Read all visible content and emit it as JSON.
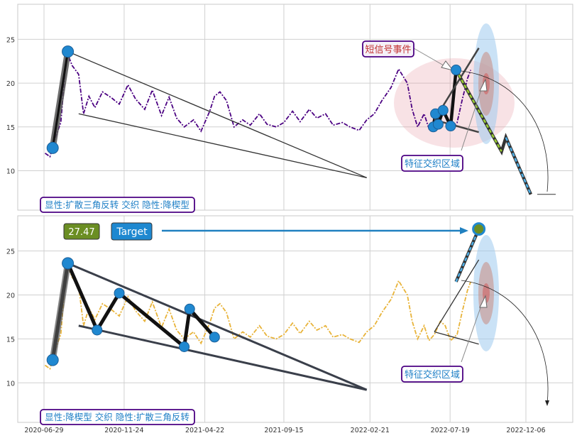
{
  "chart_data": [
    {
      "type": "line",
      "panel": "top",
      "ylim": [
        5.5,
        29
      ],
      "yticks": [
        10,
        15,
        20,
        25
      ],
      "grid": true,
      "series_color": "#4b0082",
      "series": [
        {
          "x": [
            "2020-07-01",
            "2020-07-10",
            "2020-07-20",
            "2020-07-30",
            "2020-08-10",
            "2020-08-20",
            "2020-09-01",
            "2020-09-10",
            "2020-09-20",
            "2020-10-01",
            "2020-10-15",
            "2020-11-01",
            "2020-11-15",
            "2020-12-01",
            "2020-12-15",
            "2021-01-01",
            "2021-01-15",
            "2021-02-01",
            "2021-02-15",
            "2021-03-01",
            "2021-03-15",
            "2021-04-01",
            "2021-04-15",
            "2021-05-01",
            "2021-05-10",
            "2021-05-20",
            "2021-06-01",
            "2021-06-15",
            "2021-07-01",
            "2021-07-15",
            "2021-08-01",
            "2021-08-15",
            "2021-09-01",
            "2021-09-15",
            "2021-10-01",
            "2021-10-15",
            "2021-11-01",
            "2021-11-15",
            "2021-12-01",
            "2021-12-15",
            "2022-01-01",
            "2022-01-15",
            "2022-02-01",
            "2022-02-15",
            "2022-03-01",
            "2022-03-15",
            "2022-04-01",
            "2022-04-15",
            "2022-05-01",
            "2022-05-10",
            "2022-05-20",
            "2022-06-01",
            "2022-06-10",
            "2022-06-20",
            "2022-07-01",
            "2022-07-10",
            "2022-07-20",
            "2022-08-01",
            "2022-08-10",
            "2022-08-20",
            "2022-08-26"
          ],
          "values": [
            12.0,
            11.6,
            13.8,
            15.5,
            23.6,
            22.0,
            21.0,
            16.5,
            18.5,
            17.2,
            19.0,
            18.3,
            17.6,
            19.8,
            18.2,
            17.0,
            19.2,
            16.3,
            18.4,
            16.0,
            15.0,
            15.8,
            14.5,
            16.8,
            18.5,
            19.0,
            18.0,
            15.0,
            15.8,
            15.2,
            16.5,
            15.3,
            15.0,
            15.5,
            16.8,
            15.6,
            17.0,
            16.0,
            16.5,
            15.2,
            15.5,
            15.0,
            14.6,
            15.8,
            16.5,
            18.0,
            19.5,
            21.6,
            20.0,
            17.0,
            15.0,
            16.5,
            14.8,
            15.5,
            17.0,
            16.5,
            14.8,
            15.5,
            18.0,
            20.5,
            21.5
          ]
        }
      ],
      "pattern_points": [
        {
          "x": "2020-07-15",
          "y": 12.6
        },
        {
          "x": "2020-08-12",
          "y": 23.6
        },
        {
          "x": "2022-06-18",
          "y": 15.0
        },
        {
          "x": "2022-06-22",
          "y": 16.5
        },
        {
          "x": "2022-06-27",
          "y": 15.3
        },
        {
          "x": "2022-07-06",
          "y": 16.9
        },
        {
          "x": "2022-07-20",
          "y": 15.1
        },
        {
          "x": "2022-07-30",
          "y": 21.5
        }
      ],
      "forecast_path": [
        {
          "x": "2022-07-30",
          "y": 21.5
        },
        {
          "x": "2022-10-22",
          "y": 12.2
        },
        {
          "x": "2022-10-30",
          "y": 13.8
        },
        {
          "x": "2022-12-15",
          "y": 7.3
        }
      ],
      "annotations": [
        "短信号事件",
        "特征交织区域",
        "显性:扩散三角反转 交织 隐性:降楔型"
      ]
    },
    {
      "type": "line",
      "panel": "bottom",
      "ylim": [
        5.5,
        29
      ],
      "yticks": [
        10,
        15,
        20,
        25
      ],
      "xticks": [
        "2020-06-29",
        "2020-11-24",
        "2021-04-22",
        "2021-09-15",
        "2022-02-21",
        "2022-07-19",
        "2022-12-06"
      ],
      "grid": true,
      "series_color": "#e8b339",
      "series": [
        {
          "x": [
            "2020-07-01",
            "2020-07-10",
            "2020-07-20",
            "2020-07-30",
            "2020-08-10",
            "2020-08-20",
            "2020-09-01",
            "2020-09-10",
            "2020-09-20",
            "2020-10-01",
            "2020-10-15",
            "2020-11-01",
            "2020-11-15",
            "2020-12-01",
            "2020-12-15",
            "2021-01-01",
            "2021-01-15",
            "2021-02-01",
            "2021-02-15",
            "2021-03-01",
            "2021-03-15",
            "2021-04-01",
            "2021-04-15",
            "2021-05-01",
            "2021-05-10",
            "2021-05-20",
            "2021-06-01",
            "2021-06-15",
            "2021-07-01",
            "2021-07-15",
            "2021-08-01",
            "2021-08-15",
            "2021-09-01",
            "2021-09-15",
            "2021-10-01",
            "2021-10-15",
            "2021-11-01",
            "2021-11-15",
            "2021-12-01",
            "2021-12-15",
            "2022-01-01",
            "2022-01-15",
            "2022-02-01",
            "2022-02-15",
            "2022-03-01",
            "2022-03-15",
            "2022-04-01",
            "2022-04-15",
            "2022-05-01",
            "2022-05-10",
            "2022-05-20",
            "2022-06-01",
            "2022-06-10",
            "2022-06-20",
            "2022-07-01",
            "2022-07-10",
            "2022-07-20",
            "2022-08-01",
            "2022-08-10",
            "2022-08-20",
            "2022-08-26"
          ],
          "values": [
            12.0,
            11.6,
            13.8,
            15.5,
            23.6,
            22.0,
            21.0,
            16.5,
            18.5,
            17.2,
            19.0,
            18.3,
            17.6,
            19.8,
            18.2,
            17.0,
            19.2,
            16.3,
            18.4,
            16.0,
            15.0,
            15.8,
            14.5,
            16.8,
            18.5,
            19.0,
            18.0,
            15.0,
            15.8,
            15.2,
            16.5,
            15.3,
            15.0,
            15.5,
            16.8,
            15.6,
            17.0,
            16.0,
            16.5,
            15.2,
            15.5,
            15.0,
            14.6,
            15.8,
            16.5,
            18.0,
            19.5,
            21.6,
            20.0,
            17.0,
            15.0,
            16.5,
            14.8,
            15.5,
            17.0,
            16.5,
            14.8,
            15.5,
            18.0,
            20.5,
            21.5
          ]
        }
      ],
      "pattern_points": [
        {
          "x": "2020-07-15",
          "y": 12.6
        },
        {
          "x": "2020-08-12",
          "y": 23.6
        },
        {
          "x": "2020-10-05",
          "y": 16.0
        },
        {
          "x": "2020-11-15",
          "y": 20.2
        },
        {
          "x": "2021-03-15",
          "y": 14.1
        },
        {
          "x": "2021-03-25",
          "y": 18.4
        },
        {
          "x": "2021-05-10",
          "y": 15.2
        }
      ],
      "forecast_path": [
        {
          "x": "2022-07-30",
          "y": 21.5
        },
        {
          "x": "2022-09-10",
          "y": 27.5
        }
      ],
      "target_badge": {
        "value": "27.47",
        "label": "Target"
      },
      "annotations": [
        "特征交织区域",
        "显性:降楔型 交织 隐性:扩散三角反转"
      ]
    }
  ],
  "legend_top": "显性:扩散三角反转 交织 隐性:降楔型",
  "legend_bottom": "显性:降楔型 交织 隐性:扩散三角反转",
  "callout_signal": "短信号事件",
  "callout_zone_top": "特征交织区域",
  "callout_zone_bottom": "特征交织区域",
  "target_value": "27.47",
  "target_label": "Target",
  "colors": {
    "grid": "#d0d0d0",
    "frame": "#c8c8c8",
    "top_series": "#4b0082",
    "bottom_series": "#e8b339",
    "marker": "#2088d0",
    "box_border": "#4b0082",
    "box_text": "#1e7fc6",
    "callout_text": "#c23030",
    "target_value_bg": "#6b8e23",
    "target_label_bg": "#1e88d0"
  }
}
